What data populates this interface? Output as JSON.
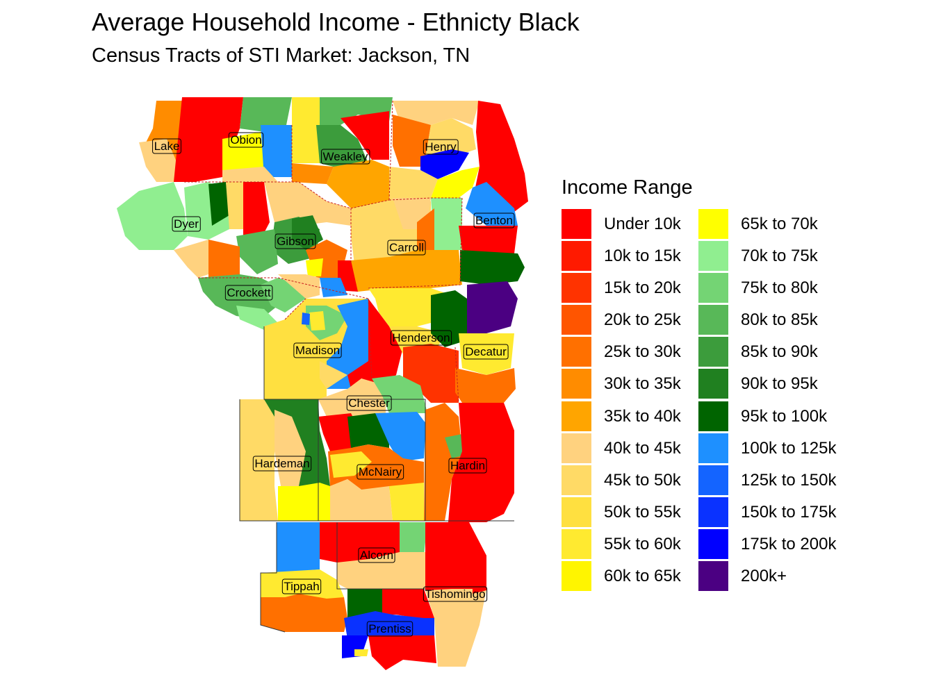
{
  "title": "Average Household Income - Ethnicty Black",
  "subtitle": "Census Tracts of STI Market: Jackson, TN",
  "legend": {
    "title": "Income Range",
    "items": [
      {
        "label": "Under 10k",
        "color": "#FF0000"
      },
      {
        "label": "10k to 15k",
        "color": "#FF1A00"
      },
      {
        "label": "15k to 20k",
        "color": "#FF3300"
      },
      {
        "label": "20k to 25k",
        "color": "#FF5500"
      },
      {
        "label": "25k to 30k",
        "color": "#FF7000"
      },
      {
        "label": "30k to 35k",
        "color": "#FF8C00"
      },
      {
        "label": "35k to 40k",
        "color": "#FFA500"
      },
      {
        "label": "40k to 45k",
        "color": "#FFD27F"
      },
      {
        "label": "45k to 50k",
        "color": "#FFDA66"
      },
      {
        "label": "50k to 55k",
        "color": "#FFE040"
      },
      {
        "label": "55k to 60k",
        "color": "#FFEA30"
      },
      {
        "label": "60k to 65k",
        "color": "#FFF500"
      },
      {
        "label": "65k to 70k",
        "color": "#FFFF00"
      },
      {
        "label": "70k to 75k",
        "color": "#90EE90"
      },
      {
        "label": "75k to 80k",
        "color": "#74D474"
      },
      {
        "label": "80k to 85k",
        "color": "#58B858"
      },
      {
        "label": "85k to 90k",
        "color": "#3C9C3C"
      },
      {
        "label": "90k to 95k",
        "color": "#208020"
      },
      {
        "label": "95k to 100k",
        "color": "#006400"
      },
      {
        "label": "100k to 125k",
        "color": "#1E90FF"
      },
      {
        "label": "125k to 150k",
        "color": "#1464FF"
      },
      {
        "label": "150k to 175k",
        "color": "#0A32FF"
      },
      {
        "label": "175k to 200k",
        "color": "#0000FF"
      },
      {
        "label": "200k+",
        "color": "#4B0082"
      }
    ]
  },
  "counties": [
    {
      "name": "Lake"
    },
    {
      "name": "Obion"
    },
    {
      "name": "Weakley"
    },
    {
      "name": "Henry"
    },
    {
      "name": "Dyer"
    },
    {
      "name": "Gibson"
    },
    {
      "name": "Carroll"
    },
    {
      "name": "Benton"
    },
    {
      "name": "Crockett"
    },
    {
      "name": "Madison"
    },
    {
      "name": "Henderson"
    },
    {
      "name": "Decatur"
    },
    {
      "name": "Chester"
    },
    {
      "name": "Hardeman"
    },
    {
      "name": "McNairy"
    },
    {
      "name": "Hardin"
    },
    {
      "name": "Alcorn"
    },
    {
      "name": "Tippah"
    },
    {
      "name": "Tishomingo"
    },
    {
      "name": "Prentiss"
    }
  ]
}
